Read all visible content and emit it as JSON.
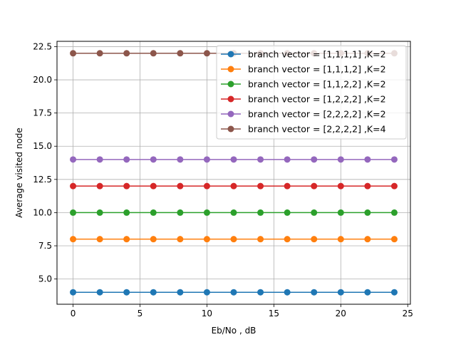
{
  "chart_data": {
    "type": "line",
    "title": "",
    "xlabel": "Eb/No , dB",
    "ylabel": "Average visited node",
    "xlim": [
      -1.2,
      25.2
    ],
    "ylim": [
      3.1,
      22.9
    ],
    "xticks": [
      0,
      5,
      10,
      15,
      20,
      25
    ],
    "yticks": [
      5.0,
      7.5,
      10.0,
      12.5,
      15.0,
      17.5,
      20.0,
      22.5
    ],
    "xtick_labels": [
      "0",
      "5",
      "10",
      "15",
      "20",
      "25"
    ],
    "ytick_labels": [
      "5.0",
      "7.5",
      "10.0",
      "12.5",
      "15.0",
      "17.5",
      "20.0",
      "22.5"
    ],
    "grid": true,
    "legend_position": "top-right",
    "x": [
      0,
      2,
      4,
      6,
      8,
      10,
      12,
      14,
      16,
      18,
      20,
      22,
      24
    ],
    "series": [
      {
        "name": "branch vector = [1,1,1,1] ,K=2",
        "color": "#1f77b4",
        "values": [
          4,
          4,
          4,
          4,
          4,
          4,
          4,
          4,
          4,
          4,
          4,
          4,
          4
        ]
      },
      {
        "name": "branch vector = [1,1,1,2] ,K=2",
        "color": "#ff7f0e",
        "values": [
          8,
          8,
          8,
          8,
          8,
          8,
          8,
          8,
          8,
          8,
          8,
          8,
          8
        ]
      },
      {
        "name": "branch vector = [1,1,2,2] ,K=2",
        "color": "#2ca02c",
        "values": [
          10,
          10,
          10,
          10,
          10,
          10,
          10,
          10,
          10,
          10,
          10,
          10,
          10
        ]
      },
      {
        "name": "branch vector = [1,2,2,2] ,K=2",
        "color": "#d62728",
        "values": [
          12,
          12,
          12,
          12,
          12,
          12,
          12,
          12,
          12,
          12,
          12,
          12,
          12
        ]
      },
      {
        "name": "branch vector = [2,2,2,2] ,K=2",
        "color": "#9467bd",
        "values": [
          14,
          14,
          14,
          14,
          14,
          14,
          14,
          14,
          14,
          14,
          14,
          14,
          14
        ]
      },
      {
        "name": "branch vector = [2,2,2,2] ,K=4",
        "color": "#8c564b",
        "values": [
          22,
          22,
          22,
          22,
          22,
          22,
          22,
          22,
          22,
          22,
          22,
          22,
          22
        ]
      }
    ]
  }
}
